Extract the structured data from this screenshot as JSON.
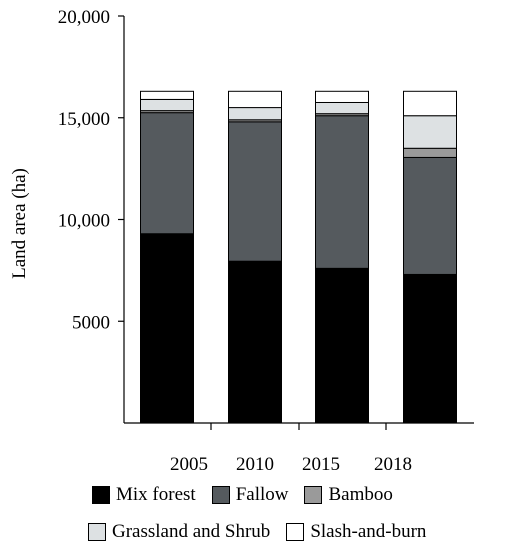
{
  "chart_data": {
    "type": "bar",
    "stacked": true,
    "categories": [
      "2005",
      "2010",
      "2015",
      "2018"
    ],
    "ylabel": "Land area (ha)",
    "xlabel": "",
    "ylim": [
      0,
      20000
    ],
    "yticks": [
      {
        "value": 5000,
        "label": "5000"
      },
      {
        "value": 10000,
        "label": "10,000"
      },
      {
        "value": 15000,
        "label": "15,000"
      },
      {
        "value": 20000,
        "label": "20,000"
      }
    ],
    "grid": false,
    "legend_position": "bottom",
    "series": [
      {
        "name": "Mix forest",
        "color": "#000000",
        "values": [
          9300,
          7950,
          7600,
          7300
        ]
      },
      {
        "name": "Fallow",
        "color": "#555a5e",
        "values": [
          5950,
          6850,
          7500,
          5750
        ]
      },
      {
        "name": "Bamboo",
        "color": "#9a9a9a",
        "values": [
          100,
          100,
          100,
          450
        ]
      },
      {
        "name": "Grassland and Shrub",
        "color": "#dde1e3",
        "values": [
          550,
          600,
          550,
          1600
        ]
      },
      {
        "name": "Slash-and-burn",
        "color": "#ffffff",
        "values": [
          400,
          800,
          550,
          1200
        ]
      }
    ]
  }
}
